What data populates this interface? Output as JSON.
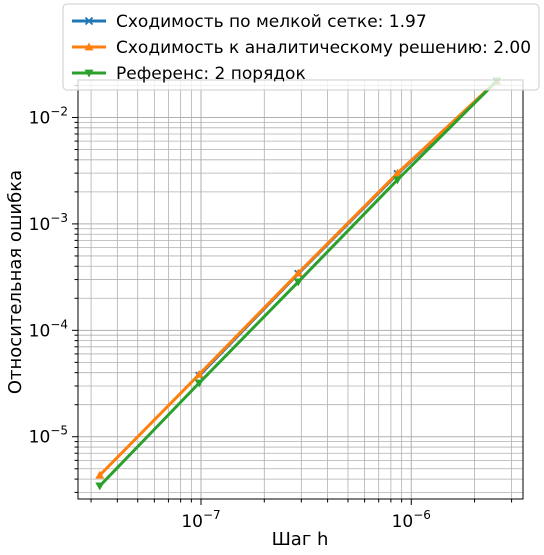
{
  "chart_data": {
    "type": "line",
    "xscale": "log",
    "yscale": "log",
    "xlabel": "Шаг h",
    "ylabel": "Относительная ошибка",
    "xlim": [
      2.6e-08,
      3.4e-06
    ],
    "ylim": [
      2.6e-06,
      0.0225
    ],
    "grid": true,
    "legend_position": "top (overlapping plot area)",
    "x_major_ticks": [
      {
        "value": 1e-07,
        "base": "10",
        "exp": "−7"
      },
      {
        "value": 1e-06,
        "base": "10",
        "exp": "−6"
      }
    ],
    "y_major_ticks": [
      {
        "value": 1e-05,
        "base": "10",
        "exp": "−5"
      },
      {
        "value": 0.0001,
        "base": "10",
        "exp": "−4"
      },
      {
        "value": 0.001,
        "base": "10",
        "exp": "−3"
      },
      {
        "value": 0.01,
        "base": "10",
        "exp": "−2"
      }
    ],
    "series": [
      {
        "name": "Сходимость по мелкой сетке: 1.97",
        "color": "#1f77b4",
        "marker": "x",
        "x": [
          9.8e-08,
          2.9e-07,
          8.6e-07,
          2.55e-06
        ],
        "y": [
          3.75e-05,
          0.00034,
          0.00295,
          0.022
        ]
      },
      {
        "name": "Сходимость к аналитическому решению: 2.00",
        "color": "#ff7f0e",
        "marker": "triangle-up",
        "x": [
          3.3e-08,
          9.8e-08,
          2.9e-07,
          8.6e-07,
          2.55e-06
        ],
        "y": [
          4.35e-06,
          3.85e-05,
          0.000345,
          0.003,
          0.022
        ]
      },
      {
        "name": "Референс: 2 порядок",
        "color": "#2ca02c",
        "marker": "triangle-down",
        "x": [
          3.3e-08,
          9.8e-08,
          2.9e-07,
          8.6e-07,
          2.55e-06
        ],
        "y": [
          3.45e-06,
          3.2e-05,
          0.000285,
          0.0026,
          0.022
        ]
      }
    ]
  }
}
